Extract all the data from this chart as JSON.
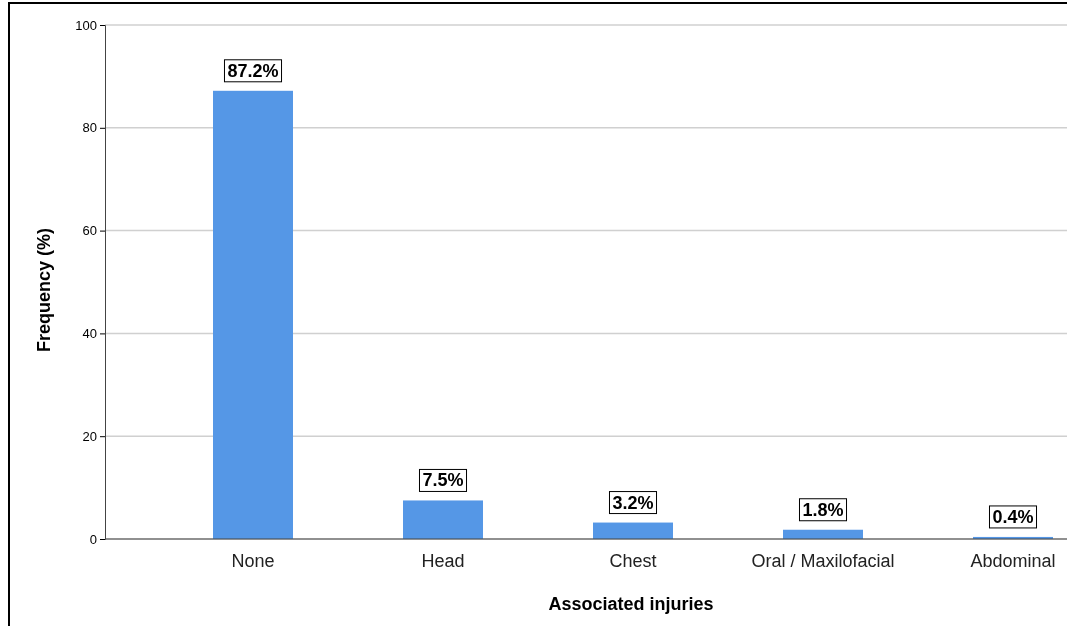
{
  "chart_data": {
    "type": "bar",
    "xlabel": "Associated injuries",
    "ylabel": "Frequency (%)",
    "categories": [
      "None",
      "Head",
      "Chest",
      "Oral / Maxilofacial",
      "Abdominal"
    ],
    "values": [
      87.2,
      7.5,
      3.2,
      1.8,
      0.4
    ],
    "value_labels": [
      "87.2%",
      "7.5%",
      "3.2%",
      "1.8%",
      "0.4%"
    ],
    "color": "#5597e6",
    "ylim": [
      0,
      100
    ],
    "yticks": [
      0,
      20,
      40,
      60,
      80,
      100
    ],
    "grid": "y"
  }
}
